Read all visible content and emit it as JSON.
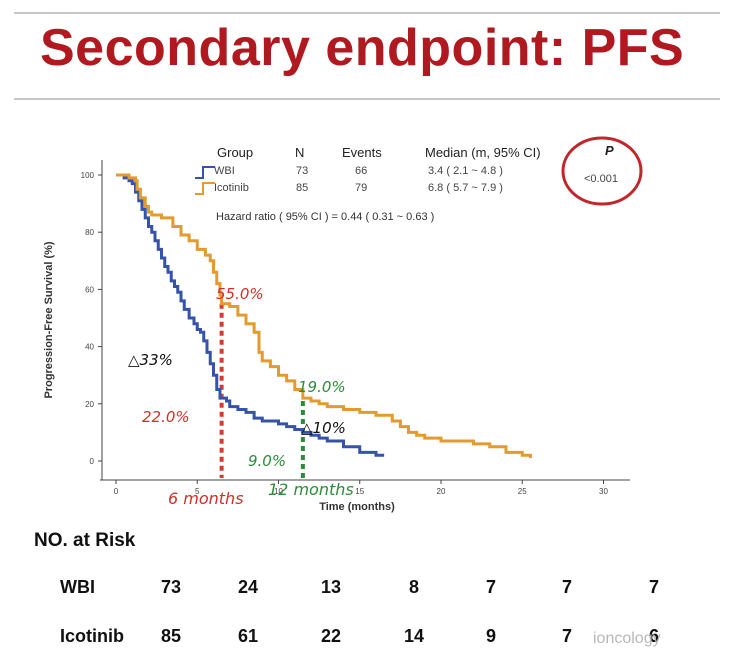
{
  "slide": {
    "title": "Secondary endpoint: PFS",
    "watermark": "ioncology"
  },
  "table_header": {
    "group": "Group",
    "n": "N",
    "events": "Events",
    "median": "Median (m, 95% CI)",
    "p": "P"
  },
  "groups": [
    {
      "name": "WBI",
      "n": "73",
      "events": "66",
      "median": "3.4 ( 2.1 ~ 4.8 )",
      "color": "#3553a8"
    },
    {
      "name": "Icotinib",
      "n": "85",
      "events": "79",
      "median": "6.8 ( 5.7 ~ 7.9 )",
      "color": "#e39a2e"
    }
  ],
  "p_value": "<0.001",
  "hazard_ratio": "Hazard ratio ( 95% CI ) = 0.44 ( 0.31 ~ 0.63 )",
  "annotations": {
    "icotinib_6m": "55.0%",
    "wbi_6m": "22.0%",
    "delta_6m": "△33%",
    "icotinib_12m": "19.0%",
    "wbi_12m": "9.0%",
    "delta_12m": "△10%",
    "label_6m": "6 months",
    "label_12m": "12 months"
  },
  "at_risk": {
    "title": "NO. at Risk",
    "rows": [
      {
        "label": "WBI",
        "values": [
          "73",
          "24",
          "13",
          "8",
          "7",
          "7",
          "7"
        ]
      },
      {
        "label": "Icotinib",
        "values": [
          "85",
          "61",
          "22",
          "14",
          "9",
          "7",
          "6"
        ]
      }
    ]
  },
  "chart_data": {
    "type": "line",
    "title": "",
    "xlabel": "Time (months)",
    "ylabel": "Progression-Free Survival (%)",
    "xlim": [
      -1,
      32
    ],
    "ylim": [
      -3,
      104
    ],
    "xticks": [
      0,
      5,
      10,
      15,
      20,
      25,
      30
    ],
    "yticks": [
      0,
      20,
      40,
      60,
      80,
      100
    ],
    "reference_lines": [
      {
        "x": 6.5,
        "from": 0,
        "to": 55,
        "color": "#d93a2e"
      },
      {
        "x": 11.5,
        "from": 0,
        "to": 21,
        "color": "#2e8b3a"
      }
    ],
    "series": [
      {
        "name": "WBI",
        "color": "#3553a8",
        "steps": [
          [
            0,
            100
          ],
          [
            0.5,
            99
          ],
          [
            0.8,
            98
          ],
          [
            1.0,
            97
          ],
          [
            1.2,
            94
          ],
          [
            1.4,
            91
          ],
          [
            1.6,
            88
          ],
          [
            1.8,
            85
          ],
          [
            2.0,
            82
          ],
          [
            2.2,
            80
          ],
          [
            2.4,
            77
          ],
          [
            2.6,
            74
          ],
          [
            2.8,
            71
          ],
          [
            3.0,
            68
          ],
          [
            3.2,
            66
          ],
          [
            3.4,
            63
          ],
          [
            3.6,
            61
          ],
          [
            3.8,
            59
          ],
          [
            4.0,
            56
          ],
          [
            4.2,
            53
          ],
          [
            4.5,
            50
          ],
          [
            4.8,
            48
          ],
          [
            5.0,
            46
          ],
          [
            5.2,
            45
          ],
          [
            5.4,
            42
          ],
          [
            5.6,
            38
          ],
          [
            5.8,
            34
          ],
          [
            6.0,
            30
          ],
          [
            6.2,
            25
          ],
          [
            6.4,
            22
          ],
          [
            6.8,
            21
          ],
          [
            7.0,
            19
          ],
          [
            7.5,
            18
          ],
          [
            8.0,
            17
          ],
          [
            8.5,
            15
          ],
          [
            9.0,
            14
          ],
          [
            10.0,
            13
          ],
          [
            10.5,
            12
          ],
          [
            11.0,
            11
          ],
          [
            11.5,
            10
          ],
          [
            12.0,
            9
          ],
          [
            12.5,
            8
          ],
          [
            13.0,
            7
          ],
          [
            14.0,
            5
          ],
          [
            15.0,
            3
          ],
          [
            16.0,
            2
          ],
          [
            16.5,
            2
          ]
        ]
      },
      {
        "name": "Icotinib",
        "color": "#e39a2e",
        "steps": [
          [
            0,
            100
          ],
          [
            0.8,
            99
          ],
          [
            1.2,
            98
          ],
          [
            1.3,
            95
          ],
          [
            1.5,
            92
          ],
          [
            1.8,
            89
          ],
          [
            2.0,
            87
          ],
          [
            2.2,
            86
          ],
          [
            2.8,
            85
          ],
          [
            3.5,
            82
          ],
          [
            4.0,
            79
          ],
          [
            4.5,
            77
          ],
          [
            5.0,
            74
          ],
          [
            5.5,
            72
          ],
          [
            5.8,
            70
          ],
          [
            6.0,
            66
          ],
          [
            6.2,
            62
          ],
          [
            6.4,
            58
          ],
          [
            6.5,
            55
          ],
          [
            7.0,
            54
          ],
          [
            7.5,
            51
          ],
          [
            8.0,
            48
          ],
          [
            8.5,
            45
          ],
          [
            8.8,
            38
          ],
          [
            9.0,
            35
          ],
          [
            9.5,
            33
          ],
          [
            10.0,
            30
          ],
          [
            10.5,
            28
          ],
          [
            11.0,
            25
          ],
          [
            11.5,
            22
          ],
          [
            12.0,
            21
          ],
          [
            12.5,
            20
          ],
          [
            13.0,
            19
          ],
          [
            14.0,
            18
          ],
          [
            15.0,
            17
          ],
          [
            16.0,
            16
          ],
          [
            17.0,
            14
          ],
          [
            17.5,
            12
          ],
          [
            18.0,
            10
          ],
          [
            18.5,
            9
          ],
          [
            19.0,
            8
          ],
          [
            20.0,
            7
          ],
          [
            22.0,
            6
          ],
          [
            23.0,
            5
          ],
          [
            24.0,
            3
          ],
          [
            25.0,
            2
          ],
          [
            25.5,
            1
          ]
        ]
      }
    ]
  }
}
